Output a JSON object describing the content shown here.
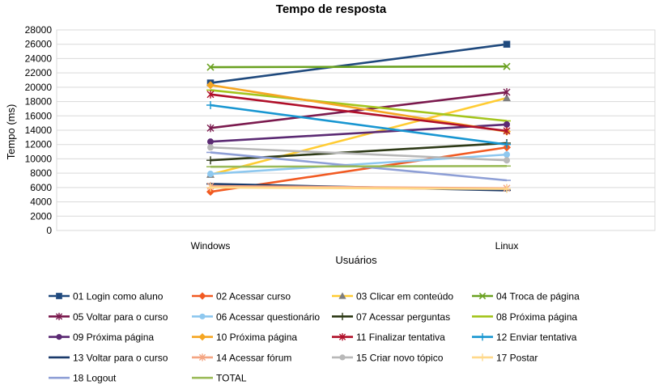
{
  "chart_data": {
    "type": "line",
    "title": "Tempo de resposta",
    "xlabel": "Usuários",
    "ylabel": "Tempo (ms)",
    "categories": [
      "Windows",
      "Linux"
    ],
    "ylim": [
      0,
      28000
    ],
    "yticks": [
      0,
      2000,
      4000,
      6000,
      8000,
      10000,
      12000,
      14000,
      16000,
      18000,
      20000,
      22000,
      24000,
      26000,
      28000
    ],
    "grid": true,
    "legend_position": "bottom",
    "series": [
      {
        "name": "01 Login como aluno",
        "values": [
          20600,
          26000
        ],
        "color": "#1f497d",
        "marker": "square"
      },
      {
        "name": "02 Acessar curso",
        "values": [
          5400,
          11600
        ],
        "color": "#f15a22",
        "marker": "diamond"
      },
      {
        "name": "03 Clicar em conteúdo",
        "values": [
          7800,
          18500
        ],
        "color": "#ffcc33",
        "marker": "triangle"
      },
      {
        "name": "04 Troca de página",
        "values": [
          22800,
          22900
        ],
        "color": "#6aa121",
        "marker": "x"
      },
      {
        "name": "05 Voltar para o curso",
        "values": [
          14300,
          19300
        ],
        "color": "#7b1a4e",
        "marker": "star"
      },
      {
        "name": "06 Acessar questionário",
        "values": [
          7900,
          10600
        ],
        "color": "#8ec8ef",
        "marker": "circle"
      },
      {
        "name": "07 Acessar perguntas",
        "values": [
          9800,
          12200
        ],
        "color": "#2e3a17",
        "marker": "plus"
      },
      {
        "name": "08 Próxima página",
        "values": [
          19600,
          15300
        ],
        "color": "#a4c51d",
        "marker": "dash"
      },
      {
        "name": "09 Próxima página",
        "values": [
          12400,
          14800
        ],
        "color": "#5b2a73",
        "marker": "circle"
      },
      {
        "name": "10 Próxima página",
        "values": [
          20300,
          13800
        ],
        "color": "#f5a623",
        "marker": "diamond"
      },
      {
        "name": "11 Finalizar tentativa",
        "values": [
          19000,
          13900
        ],
        "color": "#b0102a",
        "marker": "star"
      },
      {
        "name": "12 Enviar tentativa",
        "values": [
          17500,
          12000
        ],
        "color": "#1896d1",
        "marker": "plus"
      },
      {
        "name": "13 Voltar para o curso",
        "values": [
          6500,
          5600
        ],
        "color": "#1a3a6b",
        "marker": "dash"
      },
      {
        "name": "14 Acessar fórum",
        "values": [
          6200,
          5900
        ],
        "color": "#f4a582",
        "marker": "star"
      },
      {
        "name": "15 Criar novo tópico",
        "values": [
          11600,
          9800
        ],
        "color": "#b8b8b8",
        "marker": "circle"
      },
      {
        "name": "17 Postar",
        "values": [
          6000,
          5800
        ],
        "color": "#ffd98a",
        "marker": "plus"
      },
      {
        "name": "18 Logout",
        "values": [
          10900,
          7000
        ],
        "color": "#8e9fd6",
        "marker": "dash"
      },
      {
        "name": "TOTAL",
        "values": [
          8900,
          9000
        ],
        "color": "#9bbb59",
        "marker": "dash"
      }
    ]
  }
}
